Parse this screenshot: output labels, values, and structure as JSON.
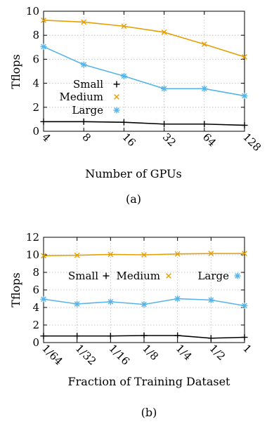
{
  "chart_data": [
    {
      "type": "line",
      "caption": "(a)",
      "xlabel": "Number of GPUs",
      "ylabel": "Tflops",
      "categories": [
        "4",
        "8",
        "16",
        "32",
        "64",
        "128"
      ],
      "ylim": [
        0,
        10
      ],
      "yticks": [
        0,
        2,
        4,
        6,
        8,
        10
      ],
      "grid": true,
      "legend": "left",
      "series": [
        {
          "name": "Small",
          "color": "#000000",
          "marker": "plus",
          "values": [
            0.8,
            0.8,
            0.75,
            0.6,
            0.6,
            0.5
          ]
        },
        {
          "name": "Medium",
          "color": "#e69f00",
          "marker": "x",
          "values": [
            9.25,
            9.1,
            8.75,
            8.25,
            7.25,
            6.2
          ]
        },
        {
          "name": "Large",
          "color": "#56b4e9",
          "marker": "asterisk",
          "values": [
            7.05,
            5.55,
            4.6,
            3.55,
            3.55,
            2.95
          ]
        }
      ]
    },
    {
      "type": "line",
      "caption": "(b)",
      "xlabel": "Fraction of Training Dataset",
      "ylabel": "Tflops",
      "categories": [
        "1/64",
        "1/32",
        "1/16",
        "1/8",
        "1/4",
        "1/2",
        "1"
      ],
      "ylim": [
        0,
        12
      ],
      "yticks": [
        0,
        2,
        4,
        6,
        8,
        10,
        12
      ],
      "grid": true,
      "legend": "top",
      "series": [
        {
          "name": "Small",
          "color": "#000000",
          "marker": "plus",
          "values": [
            0.75,
            0.75,
            0.75,
            0.8,
            0.8,
            0.5,
            0.6
          ]
        },
        {
          "name": "Medium",
          "color": "#e69f00",
          "marker": "x",
          "values": [
            9.9,
            9.95,
            10.05,
            10.0,
            10.1,
            10.15,
            10.15
          ]
        },
        {
          "name": "Large",
          "color": "#56b4e9",
          "marker": "asterisk",
          "values": [
            4.95,
            4.4,
            4.65,
            4.35,
            5.0,
            4.85,
            4.2
          ]
        }
      ]
    }
  ]
}
